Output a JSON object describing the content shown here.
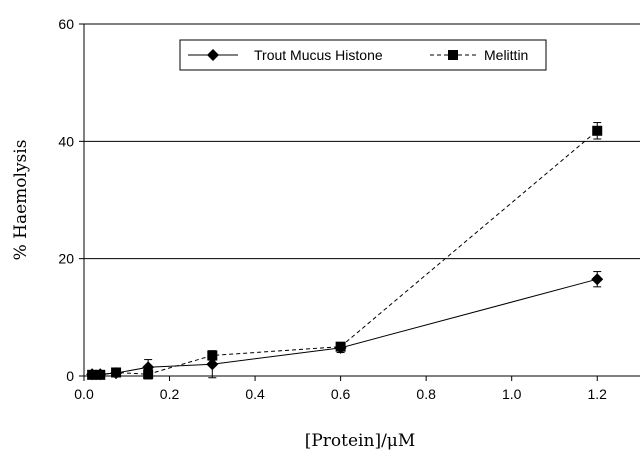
{
  "chart_data": {
    "type": "line",
    "xlabel": "[Protein]/μM",
    "ylabel": "% Haemolysis",
    "xlim": [
      0,
      1.3
    ],
    "ylim": [
      0,
      60
    ],
    "xticks": [
      0.0,
      0.2,
      0.4,
      0.6,
      0.8,
      1.0,
      1.2
    ],
    "xtick_labels": [
      "0.0",
      "0.2",
      "0.4",
      "0.6",
      "0.8",
      "1.0",
      "1.2"
    ],
    "yticks": [
      0,
      20,
      40,
      60
    ],
    "ytick_labels": [
      "0",
      "20",
      "40",
      "60"
    ],
    "grid": "horizontal",
    "legend_position": "top",
    "series": [
      {
        "name": "Trout Mucus Histone",
        "line_style": "solid",
        "marker": "diamond",
        "x": [
          0.019,
          0.038,
          0.075,
          0.15,
          0.3,
          0.6,
          1.2
        ],
        "y": [
          0.3,
          0.3,
          0.5,
          1.5,
          2.0,
          4.8,
          16.5
        ],
        "error": [
          0.5,
          0.5,
          0.4,
          1.3,
          2.3,
          0.8,
          1.3
        ]
      },
      {
        "name": "Melittin",
        "line_style": "dashed",
        "marker": "square",
        "x": [
          0.019,
          0.038,
          0.075,
          0.15,
          0.3,
          0.6,
          1.2
        ],
        "y": [
          0.2,
          0.2,
          0.6,
          0.3,
          3.5,
          5.0,
          41.8
        ],
        "error": [
          0.4,
          0.3,
          0.3,
          0.8,
          0.8,
          0.7,
          1.4
        ]
      }
    ]
  }
}
